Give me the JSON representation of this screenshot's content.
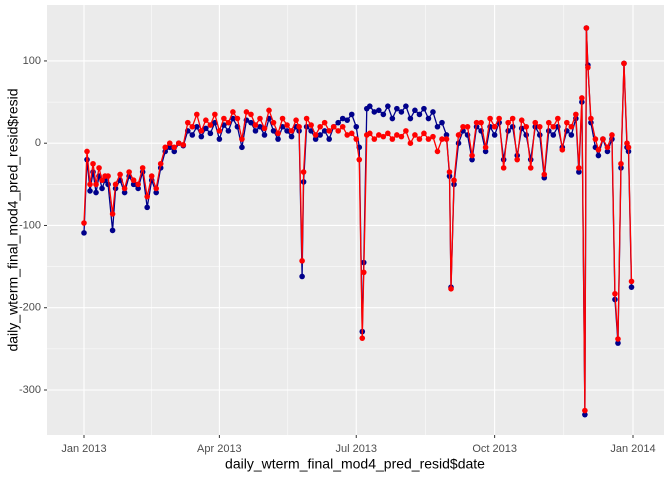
{
  "chart_data": {
    "type": "line",
    "x_label": "daily_wterm_final_mod4_pred_resid$date",
    "y_label": "daily_wterm_final_mod4_pred_resid$resid",
    "x": [
      0,
      2,
      4,
      6,
      8,
      10,
      12,
      14,
      16,
      19,
      21,
      24,
      27,
      30,
      33,
      36,
      39,
      42,
      45,
      48,
      51,
      54,
      57,
      60,
      63,
      66,
      69,
      72,
      75,
      78,
      81,
      84,
      87,
      90,
      93,
      96,
      99,
      102,
      105,
      108,
      111,
      114,
      117,
      120,
      123,
      126,
      129,
      132,
      135,
      138,
      141,
      143,
      145,
      146,
      148,
      151,
      154,
      157,
      160,
      163,
      166,
      169,
      172,
      175,
      178,
      181,
      183,
      185,
      186,
      188,
      190,
      193,
      196,
      199,
      202,
      205,
      208,
      211,
      214,
      217,
      220,
      223,
      226,
      229,
      232,
      235,
      238,
      241,
      243,
      244,
      246,
      249,
      252,
      255,
      258,
      261,
      264,
      267,
      270,
      273,
      276,
      279,
      282,
      285,
      288,
      291,
      294,
      297,
      300,
      303,
      306,
      309,
      312,
      315,
      318,
      321,
      324,
      327,
      329,
      331,
      333,
      334,
      335,
      337,
      340,
      342,
      345,
      348,
      351,
      353,
      355,
      357,
      359,
      361,
      362,
      364
    ],
    "series": [
      {
        "color": "#00008b",
        "values": [
          -109,
          -20,
          -58,
          -35,
          -60,
          -40,
          -55,
          -45,
          -50,
          -106,
          -55,
          -45,
          -60,
          -40,
          -50,
          -55,
          -35,
          -78,
          -45,
          -60,
          -30,
          -10,
          -5,
          -10,
          0,
          -3,
          15,
          10,
          20,
          8,
          18,
          12,
          25,
          5,
          22,
          15,
          30,
          20,
          -5,
          28,
          25,
          15,
          20,
          10,
          30,
          15,
          5,
          20,
          15,
          8,
          20,
          15,
          -162,
          -47,
          20,
          15,
          5,
          10,
          15,
          5,
          20,
          25,
          30,
          28,
          35,
          20,
          -5,
          -229,
          -145,
          42,
          45,
          38,
          40,
          35,
          45,
          30,
          42,
          38,
          45,
          30,
          40,
          35,
          42,
          30,
          38,
          20,
          25,
          10,
          -40,
          -175,
          -50,
          0,
          15,
          10,
          -20,
          20,
          15,
          -10,
          20,
          10,
          25,
          -20,
          15,
          20,
          -15,
          18,
          10,
          -20,
          20,
          10,
          -42,
          15,
          10,
          20,
          -5,
          15,
          10,
          30,
          -35,
          50,
          -330,
          140,
          95,
          25,
          -5,
          -15,
          5,
          -10,
          5,
          -190,
          -243,
          -30,
          97,
          -5,
          -10,
          -175
        ]
      },
      {
        "color": "#ff0000",
        "values": [
          -97,
          -10,
          -50,
          -25,
          -50,
          -30,
          -45,
          -40,
          -40,
          -86,
          -50,
          -38,
          -55,
          -35,
          -45,
          -50,
          -30,
          -65,
          -40,
          -55,
          -25,
          -5,
          0,
          -5,
          0,
          -2,
          25,
          20,
          35,
          15,
          28,
          22,
          35,
          15,
          30,
          25,
          38,
          30,
          5,
          38,
          35,
          22,
          30,
          18,
          40,
          25,
          12,
          30,
          22,
          15,
          28,
          20,
          -143,
          -35,
          30,
          22,
          10,
          20,
          25,
          15,
          20,
          15,
          20,
          10,
          12,
          5,
          -20,
          -237,
          -157,
          10,
          12,
          5,
          10,
          8,
          12,
          5,
          10,
          8,
          15,
          0,
          10,
          5,
          12,
          5,
          8,
          -10,
          5,
          5,
          -35,
          -177,
          -45,
          10,
          20,
          20,
          -15,
          25,
          25,
          -5,
          30,
          20,
          30,
          -30,
          25,
          30,
          -20,
          28,
          20,
          -30,
          25,
          20,
          -38,
          25,
          20,
          30,
          -8,
          25,
          20,
          35,
          -30,
          55,
          -325,
          140,
          92,
          30,
          5,
          -8,
          5,
          -5,
          10,
          -183,
          -238,
          -25,
          97,
          0,
          -5,
          -168
        ]
      }
    ],
    "xlim": [
      -24.6,
      385.6
    ],
    "xticks": [
      {
        "value": 0,
        "label": "Jan 2013"
      },
      {
        "value": 90,
        "label": "Apr 2013"
      },
      {
        "value": 181,
        "label": "Jul 2013"
      },
      {
        "value": 273,
        "label": "Oct 2013"
      },
      {
        "value": 365,
        "label": "Jan 2014"
      }
    ],
    "ylim": [
      -354.7,
      168
    ],
    "yticks": [
      -300,
      -200,
      -100,
      0,
      100
    ],
    "grid": true
  }
}
